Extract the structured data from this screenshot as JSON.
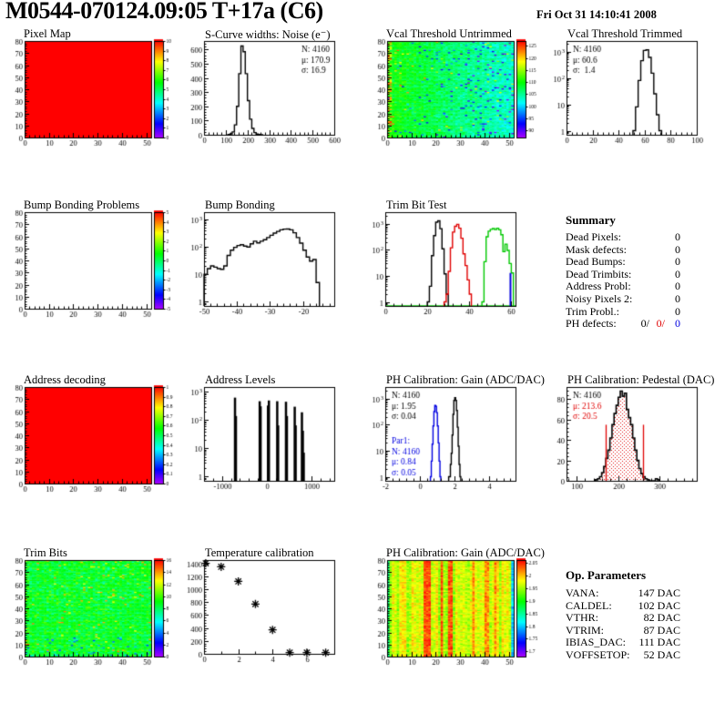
{
  "header": {
    "title": "M0544-070124.09:05 T+17a (C6)",
    "datetime": "Fri Oct 31 14:10:41 2008"
  },
  "chart_data": [
    {
      "title": "Pixel Map",
      "type": "heatmap",
      "style": "solid",
      "solid_color": "#FF0000",
      "x": {
        "min": 0,
        "max": 52,
        "ticks": [
          0,
          10,
          20,
          30,
          40,
          50
        ]
      },
      "y": {
        "min": 0,
        "max": 80,
        "ticks": [
          0,
          10,
          20,
          30,
          40,
          50,
          60,
          70,
          80
        ]
      },
      "colorbar": {
        "zmin": 0,
        "zmax": 10,
        "tick_values": [
          0,
          1,
          2,
          3,
          4,
          5,
          6,
          7,
          8,
          9,
          10
        ],
        "tick_labels": [
          "0",
          "1",
          "2",
          "3",
          "4",
          "5",
          "6",
          "7",
          "8",
          "9",
          "10"
        ]
      }
    },
    {
      "title": "S-Curve widths: Noise (e⁻)",
      "type": "hist",
      "yscale": "lin",
      "x": {
        "min": 0,
        "max": 600,
        "ticks": [
          0,
          100,
          200,
          300,
          400,
          500,
          600
        ]
      },
      "y": {
        "min": 0,
        "max": 660,
        "ticks": [
          0,
          100,
          200,
          300,
          400,
          500,
          600
        ]
      },
      "series": [
        {
          "color": "#000000",
          "x0": 110,
          "dx": 10,
          "counts": [
            2,
            6,
            20,
            70,
            200,
            430,
            625,
            585,
            430,
            240,
            110,
            45,
            15,
            5,
            2,
            1
          ]
        }
      ],
      "stats": [
        {
          "pos": "tr",
          "lines": [
            {
              "text": "N: 4160",
              "color": "#000000"
            },
            {
              "text": "μ: 170.9",
              "color": "#000000"
            },
            {
              "text": "σ: 16.9",
              "color": "#000000"
            }
          ]
        }
      ]
    },
    {
      "title": "Vcal Threshold Untrimmed",
      "type": "heatmap",
      "style": "noise-untrimmed",
      "x": {
        "min": 0,
        "max": 52,
        "ticks": [
          0,
          10,
          20,
          30,
          40,
          50
        ]
      },
      "y": {
        "min": 0,
        "max": 80,
        "ticks": [
          0,
          10,
          20,
          30,
          40,
          50,
          60,
          70,
          80
        ]
      },
      "colorbar": {
        "zmin": 87,
        "zmax": 127,
        "tick_values": [
          90,
          95,
          100,
          105,
          110,
          115,
          120,
          125
        ],
        "tick_labels": [
          "90",
          "95",
          "100",
          "105",
          "110",
          "115",
          "120",
          "125"
        ]
      }
    },
    {
      "title": "Vcal Threshold Trimmed",
      "type": "hist",
      "yscale": "log",
      "x": {
        "min": 0,
        "max": 100,
        "ticks": [
          0,
          20,
          40,
          60,
          80,
          100
        ]
      },
      "y": {
        "min": 0.7,
        "max": 2500
      },
      "series": [
        {
          "color": "#000000",
          "x0": 51,
          "dx": 2,
          "counts": [
            1,
            8,
            80,
            450,
            1100,
            1150,
            600,
            150,
            25,
            4,
            1
          ]
        }
      ],
      "stats": [
        {
          "pos": "tl",
          "lines": [
            {
              "text": "N: 4160",
              "color": "#000000"
            },
            {
              "text": "μ: 60.6",
              "color": "#000000"
            },
            {
              "text": "σ:  1.4",
              "color": "#000000"
            }
          ]
        }
      ]
    },
    {
      "title": "Bump Bonding Problems",
      "type": "heatmap",
      "style": "empty",
      "x": {
        "min": 0,
        "max": 52,
        "ticks": [
          0,
          10,
          20,
          30,
          40,
          50
        ]
      },
      "y": {
        "min": 0,
        "max": 80,
        "ticks": [
          0,
          10,
          20,
          30,
          40,
          50,
          60,
          70,
          80
        ]
      },
      "colorbar": {
        "zmin": -5,
        "zmax": 5,
        "tick_values": [
          -5,
          -4,
          -3,
          -2,
          -1,
          0,
          1,
          2,
          3,
          4,
          5
        ],
        "tick_labels": [
          "-5",
          "-4",
          "-3",
          "-2",
          "-1",
          "0",
          "1",
          "2",
          "3",
          "4",
          "5"
        ]
      }
    },
    {
      "title": "Bump Bonding",
      "type": "hist",
      "yscale": "log",
      "x": {
        "min": -50,
        "max": -10.5,
        "ticks": [
          -50,
          -40,
          -30,
          -20
        ]
      },
      "y": {
        "min": 0.7,
        "max": 1800
      },
      "series": [
        {
          "color": "#000000",
          "x0": -50,
          "dx": 1,
          "counts": [
            10,
            16,
            20,
            18,
            16,
            15,
            20,
            48,
            75,
            95,
            110,
            118,
            105,
            98,
            128,
            158,
            138,
            158,
            180,
            215,
            260,
            310,
            360,
            410,
            435,
            440,
            410,
            320,
            215,
            135,
            75,
            42,
            30,
            34,
            5
          ]
        }
      ]
    },
    {
      "title": "Trim Bit Test",
      "type": "hist",
      "yscale": "log",
      "x": {
        "min": 0,
        "max": 62,
        "ticks": [
          0,
          20,
          40,
          60
        ]
      },
      "y": {
        "min": 0.7,
        "max": 2800
      },
      "series": [
        {
          "color": "#00C800",
          "baseline": true,
          "x0": 46,
          "dx": 1,
          "counts": [
            1,
            35,
            320,
            520,
            610,
            655,
            600,
            680,
            590,
            380,
            85,
            165,
            95,
            30,
            13
          ]
        },
        {
          "color": "#000000",
          "x0": 20,
          "dx": 1,
          "counts": [
            1,
            4,
            60,
            350,
            1150,
            1300,
            650,
            110,
            12,
            2
          ]
        },
        {
          "color": "#E00000",
          "x0": 28,
          "dx": 1,
          "counts": [
            1,
            2,
            15,
            120,
            480,
            800,
            950,
            680,
            280,
            70,
            25,
            7,
            2
          ]
        },
        {
          "color": "#0000E0",
          "spikes": [
            [
              59.6,
              13
            ]
          ],
          "width": 2
        }
      ]
    },
    {
      "title": "Summary",
      "type": "textblock",
      "rows": [
        {
          "label": "Dead Pixels:",
          "value": "0"
        },
        {
          "label": "Mask defects:",
          "value": "0"
        },
        {
          "label": "Dead Bumps:",
          "value": "0"
        },
        {
          "label": "Dead Trimbits:",
          "value": "0"
        },
        {
          "label": "Address Probl:",
          "value": "0"
        },
        {
          "label": "Noisy Pixels 2:",
          "value": "0"
        },
        {
          "label": "Trim Probl.:",
          "value": "0"
        },
        {
          "label": "PH defects:",
          "values": [
            {
              "text": "0/",
              "color": "#000000"
            },
            {
              "text": "0/",
              "color": "#E00000"
            },
            {
              "text": "0",
              "color": "#0000E0"
            }
          ]
        }
      ]
    },
    {
      "title": "Address decoding",
      "type": "heatmap",
      "style": "solid",
      "solid_color": "#FF0000",
      "x": {
        "min": 0,
        "max": 52,
        "ticks": [
          0,
          10,
          20,
          30,
          40,
          50
        ]
      },
      "y": {
        "min": 0,
        "max": 80,
        "ticks": [
          0,
          10,
          20,
          30,
          40,
          50,
          60,
          70,
          80
        ]
      },
      "colorbar": {
        "zmin": 0,
        "zmax": 1,
        "tick_values": [
          0,
          0.1,
          0.2,
          0.3,
          0.4,
          0.5,
          0.6,
          0.7,
          0.8,
          0.9,
          1
        ],
        "tick_labels": [
          "0",
          "0.1",
          "0.2",
          "0.3",
          "0.4",
          "0.5",
          "0.6",
          "0.7",
          "0.8",
          "0.9",
          "1"
        ]
      }
    },
    {
      "title": "Address Levels",
      "type": "hist",
      "yscale": "log",
      "x": {
        "min": -1400,
        "max": 1500,
        "ticks": [
          -1000,
          0,
          1000
        ]
      },
      "y": {
        "min": 0.7,
        "max": 1500
      },
      "series": [
        {
          "color": "#000000",
          "width": 2.5,
          "spikes": [
            [
              -710,
              630
            ],
            [
              -690,
              140
            ],
            [
              -160,
              470
            ],
            [
              -140,
              310
            ],
            [
              25,
              330
            ],
            [
              45,
              500
            ],
            [
              230,
              470
            ],
            [
              250,
              65
            ],
            [
              425,
              450
            ],
            [
              445,
              140
            ],
            [
              620,
              300
            ],
            [
              640,
              65
            ],
            [
              780,
              190
            ],
            [
              800,
              42
            ],
            [
              820,
              7
            ]
          ]
        }
      ]
    },
    {
      "title": "PH Calibration: Gain (ADC/DAC)",
      "type": "hist",
      "yscale": "log",
      "x": {
        "min": -2,
        "max": 5.5,
        "ticks": [
          -2,
          0,
          2,
          4
        ]
      },
      "y": {
        "min": 0.7,
        "max": 2800
      },
      "series": [
        {
          "color": "#0000E0",
          "x0": 0.6,
          "dx": 0.05,
          "counts": [
            1,
            4,
            18,
            90,
            320,
            550,
            510,
            290,
            90,
            20,
            4,
            1
          ]
        },
        {
          "color": "#000000",
          "x0": 1.65,
          "dx": 0.05,
          "counts": [
            1,
            1,
            3,
            8,
            40,
            250,
            850,
            1100,
            850,
            350,
            80,
            15,
            3,
            1
          ]
        }
      ],
      "stats": [
        {
          "pos": "tl",
          "lines": [
            {
              "text": "N: 4160",
              "color": "#000000"
            },
            {
              "text": "μ: 1.95",
              "color": "#000000"
            },
            {
              "text": "σ: 0.04",
              "color": "#000000"
            }
          ]
        },
        {
          "pos": "tl",
          "dy": 50,
          "lines": [
            {
              "text": "Par1:",
              "color": "#0000E0"
            },
            {
              "text": "N: 4160",
              "color": "#0000E0"
            },
            {
              "text": "μ: 0.84",
              "color": "#0000E0"
            },
            {
              "text": "σ: 0.05",
              "color": "#0000E0"
            }
          ]
        }
      ]
    },
    {
      "title": "PH Calibration: Pedestal (DAC)",
      "type": "hist",
      "yscale": "lin",
      "x": {
        "min": 75,
        "max": 390,
        "ticks": [
          100,
          200,
          300
        ]
      },
      "y": {
        "min": 0,
        "max": 92,
        "ticks": [
          0,
          20,
          40,
          60,
          80
        ]
      },
      "series": [
        {
          "color": "#000000",
          "lw": 1.6,
          "fill": "dots",
          "x0": 145,
          "dx": 5,
          "counts": [
            1,
            2,
            4,
            8,
            14,
            22,
            30,
            42,
            55,
            66,
            74,
            82,
            88,
            83,
            86,
            70,
            62,
            55,
            42,
            30,
            20,
            12,
            7,
            4,
            2,
            1,
            0,
            0,
            0,
            2,
            1
          ]
        }
      ],
      "vlines": [
        {
          "x": 170,
          "h": 55,
          "color": "#E00000"
        },
        {
          "x": 260,
          "h": 55,
          "color": "#E00000"
        }
      ],
      "stats": [
        {
          "pos": "tl",
          "lines": [
            {
              "text": "N: 4160",
              "color": "#000000"
            },
            {
              "text": "μ: 213.6",
              "color": "#E00000"
            },
            {
              "text": "σ: 20.5",
              "color": "#E00000"
            }
          ]
        }
      ]
    },
    {
      "title": "Trim Bits",
      "type": "heatmap",
      "style": "noise-trimbits",
      "x": {
        "min": 0,
        "max": 52,
        "ticks": [
          0,
          10,
          20,
          30,
          40,
          50
        ]
      },
      "y": {
        "min": 0,
        "max": 80,
        "ticks": [
          0,
          10,
          20,
          30,
          40,
          50,
          60,
          70,
          80
        ]
      },
      "colorbar": {
        "zmin": 0,
        "zmax": 16,
        "tick_values": [
          0,
          2,
          4,
          6,
          8,
          10,
          12,
          14,
          16
        ],
        "tick_labels": [
          "0",
          "2",
          "4",
          "6",
          "8",
          "10",
          "12",
          "14",
          "16"
        ]
      }
    },
    {
      "title": "Temperature calibration",
      "type": "scatter",
      "x": {
        "min": 0,
        "max": 7.6,
        "ticks": [
          0,
          2,
          4,
          6
        ],
        "minor": 1
      },
      "y": {
        "min": 0,
        "max": 1450,
        "ticks": [
          0,
          200,
          400,
          600,
          800,
          1000,
          1200,
          1400
        ]
      },
      "points": [
        [
          0.1,
          1400
        ],
        [
          1,
          1345
        ],
        [
          2,
          1120
        ],
        [
          3,
          770
        ],
        [
          4,
          370
        ],
        [
          5,
          18
        ],
        [
          6,
          18
        ],
        [
          7.1,
          18
        ]
      ],
      "marker": "star",
      "marker_color": "#000000"
    },
    {
      "title": "PH Calibration: Gain (ADC/DAC)",
      "type": "heatmap",
      "style": "noise-gainmap",
      "x": {
        "min": 0,
        "max": 52,
        "ticks": [
          0,
          10,
          20,
          30,
          40,
          50
        ]
      },
      "y": {
        "min": 0,
        "max": 80,
        "ticks": [
          0,
          10,
          20,
          30,
          40,
          50,
          60,
          70,
          80
        ]
      },
      "colorbar": {
        "zmin": 1.68,
        "zmax": 2.06,
        "tick_values": [
          1.7,
          1.75,
          1.8,
          1.85,
          1.9,
          1.95,
          2,
          2.05
        ],
        "tick_labels": [
          "1.7",
          "1.75",
          "1.8",
          "1.85",
          "1.9",
          "1.95",
          "2",
          "2.05"
        ]
      }
    },
    {
      "title": "Op. Parameters",
      "type": "textblock",
      "rows": [
        {
          "label": "VANA:",
          "value": "147 DAC"
        },
        {
          "label": "CALDEL:",
          "value": "102 DAC"
        },
        {
          "label": "VTHR:",
          "value": "82 DAC"
        },
        {
          "label": "VTRIM:",
          "value": "87 DAC"
        },
        {
          "label": "IBIAS_DAC:",
          "value": "111 DAC"
        },
        {
          "label": "VOFFSETOP:",
          "value": "52 DAC"
        }
      ]
    }
  ]
}
